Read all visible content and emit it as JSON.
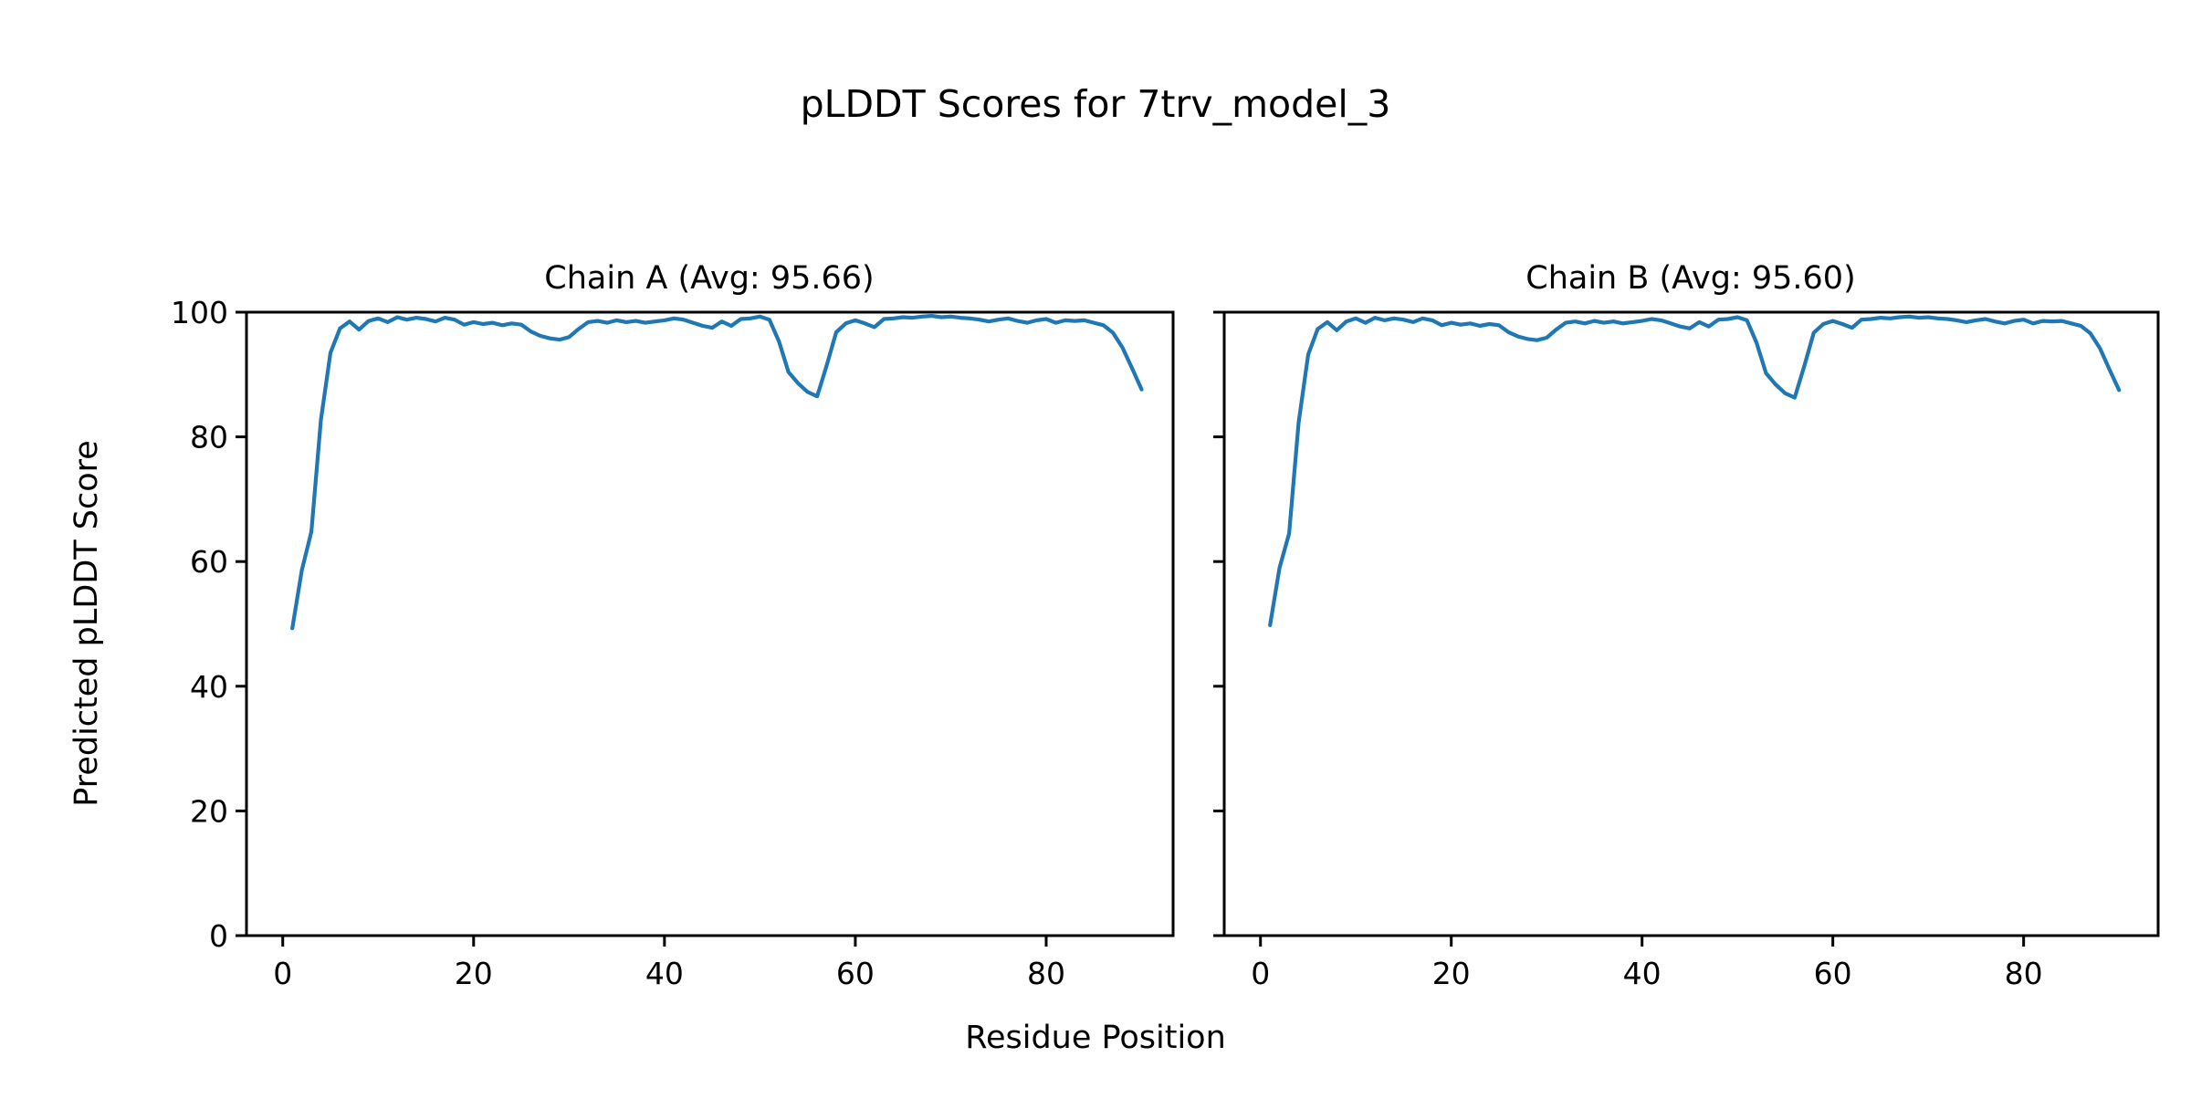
{
  "figure": {
    "title": "pLDDT Scores for 7trv_model_3",
    "xlabel": "Residue Position",
    "ylabel": "Predicted pLDDT Score",
    "background_color": "#ffffff",
    "line_color": "#1f77b4",
    "axis_color": "#000000"
  },
  "chart_data": [
    {
      "type": "line",
      "title": "Chain A (Avg: 95.66)",
      "chain": "A",
      "average_plddt": 95.66,
      "xlabel_shared": "Residue Position",
      "ylabel_shared": "Predicted pLDDT Score",
      "grid": false,
      "legend": null,
      "xticks": [
        0,
        20,
        40,
        60,
        80
      ],
      "yticks": [
        0,
        20,
        40,
        60,
        80,
        100
      ],
      "xlim": [
        -3.8,
        93.3
      ],
      "ylim": [
        0,
        100
      ],
      "x": [
        1,
        2,
        3,
        4,
        5,
        6,
        7,
        8,
        9,
        10,
        11,
        12,
        13,
        14,
        15,
        16,
        17,
        18,
        19,
        20,
        21,
        22,
        23,
        24,
        25,
        26,
        27,
        28,
        29,
        30,
        31,
        32,
        33,
        34,
        35,
        36,
        37,
        38,
        39,
        40,
        41,
        42,
        43,
        44,
        45,
        46,
        47,
        48,
        49,
        50,
        51,
        52,
        53,
        54,
        55,
        56,
        57,
        58,
        59,
        60,
        61,
        62,
        63,
        64,
        65,
        66,
        67,
        68,
        69,
        70,
        71,
        72,
        73,
        74,
        75,
        76,
        77,
        78,
        79,
        80,
        81,
        82,
        83,
        84,
        85,
        86,
        87,
        88,
        89,
        90
      ],
      "y": [
        49.3,
        58.6,
        64.8,
        82.7,
        93.5,
        97.4,
        98.5,
        97.2,
        98.6,
        99.0,
        98.4,
        99.2,
        98.8,
        99.1,
        98.9,
        98.5,
        99.1,
        98.8,
        98.0,
        98.4,
        98.1,
        98.3,
        97.9,
        98.2,
        98.0,
        96.9,
        96.2,
        95.8,
        95.6,
        96.0,
        97.3,
        98.4,
        98.6,
        98.3,
        98.7,
        98.4,
        98.6,
        98.3,
        98.5,
        98.7,
        99.0,
        98.8,
        98.3,
        97.8,
        97.5,
        98.5,
        97.8,
        98.9,
        99.0,
        99.3,
        98.8,
        95.3,
        90.4,
        88.6,
        87.2,
        86.5,
        91.5,
        96.8,
        98.2,
        98.7,
        98.2,
        97.6,
        98.9,
        99.0,
        99.2,
        99.1,
        99.3,
        99.4,
        99.2,
        99.3,
        99.1,
        99.0,
        98.8,
        98.5,
        98.8,
        99.0,
        98.6,
        98.3,
        98.7,
        98.9,
        98.3,
        98.7,
        98.6,
        98.7,
        98.3,
        97.9,
        96.7,
        94.3,
        91.0,
        87.6
      ]
    },
    {
      "type": "line",
      "title": "Chain B (Avg: 95.60)",
      "chain": "B",
      "average_plddt": 95.6,
      "xlabel_shared": "Residue Position",
      "ylabel_shared": "Predicted pLDDT Score",
      "grid": false,
      "legend": null,
      "xticks": [
        0,
        20,
        40,
        60,
        80
      ],
      "yticks": [
        0,
        20,
        40,
        60,
        80,
        100
      ],
      "xlim": [
        -3.8,
        94.1
      ],
      "ylim": [
        0,
        100
      ],
      "x": [
        1,
        2,
        3,
        4,
        5,
        6,
        7,
        8,
        9,
        10,
        11,
        12,
        13,
        14,
        15,
        16,
        17,
        18,
        19,
        20,
        21,
        22,
        23,
        24,
        25,
        26,
        27,
        28,
        29,
        30,
        31,
        32,
        33,
        34,
        35,
        36,
        37,
        38,
        39,
        40,
        41,
        42,
        43,
        44,
        45,
        46,
        47,
        48,
        49,
        50,
        51,
        52,
        53,
        54,
        55,
        56,
        57,
        58,
        59,
        60,
        61,
        62,
        63,
        64,
        65,
        66,
        67,
        68,
        69,
        70,
        71,
        72,
        73,
        74,
        75,
        76,
        77,
        78,
        79,
        80,
        81,
        82,
        83,
        84,
        85,
        86,
        87,
        88,
        89,
        90
      ],
      "y": [
        49.8,
        59.0,
        64.5,
        82.3,
        93.2,
        97.3,
        98.4,
        97.1,
        98.5,
        99.0,
        98.3,
        99.1,
        98.7,
        99.0,
        98.8,
        98.4,
        99.0,
        98.7,
        97.9,
        98.3,
        98.0,
        98.2,
        97.8,
        98.1,
        97.9,
        96.8,
        96.1,
        95.7,
        95.5,
        95.9,
        97.2,
        98.3,
        98.5,
        98.2,
        98.6,
        98.3,
        98.5,
        98.2,
        98.4,
        98.6,
        98.9,
        98.7,
        98.2,
        97.7,
        97.4,
        98.4,
        97.7,
        98.8,
        98.9,
        99.2,
        98.7,
        95.1,
        90.2,
        88.4,
        87.0,
        86.3,
        91.3,
        96.7,
        98.1,
        98.6,
        98.1,
        97.5,
        98.8,
        98.9,
        99.1,
        99.0,
        99.2,
        99.3,
        99.1,
        99.2,
        99.0,
        98.9,
        98.7,
        98.4,
        98.7,
        98.9,
        98.5,
        98.2,
        98.6,
        98.8,
        98.2,
        98.6,
        98.5,
        98.6,
        98.2,
        97.8,
        96.6,
        94.2,
        90.8,
        87.5
      ]
    }
  ]
}
